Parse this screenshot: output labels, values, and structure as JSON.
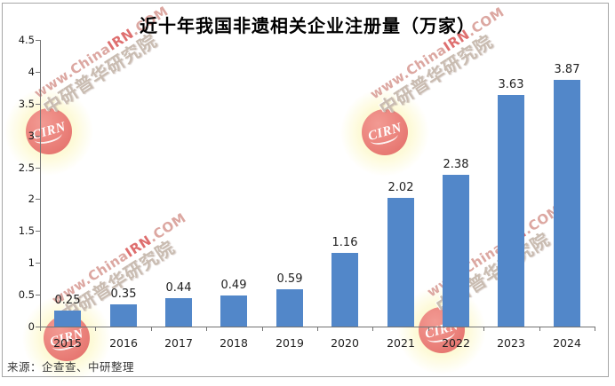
{
  "title": "近十年我国非遗相关企业注册量（万家）",
  "source": "来源：企查查、中研整理",
  "watermark": {
    "logo": "CIRN",
    "url_prefix": "www.China",
    "url_mid": "IRN",
    "url_suffix": ".COM",
    "cn": "中研普华研究院"
  },
  "colors": {
    "bar": "#5287C9",
    "axis": "#737373",
    "label_text": "#1f1f1f",
    "watermark_pink": "#DCA7A1",
    "watermark_red": "#DE6E6E",
    "watermark_gray": "#C9BCB1",
    "badge_red": "#E87872"
  },
  "chart_data": {
    "type": "bar",
    "title": "近十年我国非遗相关企业注册量（万家）",
    "categories": [
      "2015",
      "2016",
      "2017",
      "2018",
      "2019",
      "2020",
      "2021",
      "2022",
      "2023",
      "2024"
    ],
    "values": [
      0.25,
      0.35,
      0.44,
      0.49,
      0.59,
      1.16,
      2.02,
      2.38,
      3.63,
      3.87
    ],
    "data_labels": [
      "0.25",
      "0.35",
      "0.44",
      "0.49",
      "0.59",
      "1.16",
      "2.02",
      "2.38",
      "3.63",
      "3.87"
    ],
    "xlabel": "",
    "ylabel": "",
    "ylim": [
      0,
      4.5
    ],
    "ytick_step": 0.5,
    "yticks": [
      0,
      0.5,
      1,
      1.5,
      2,
      2.5,
      3,
      3.5,
      4,
      4.5
    ],
    "grid": false,
    "legend": null,
    "bar_color": "#5287C9"
  }
}
